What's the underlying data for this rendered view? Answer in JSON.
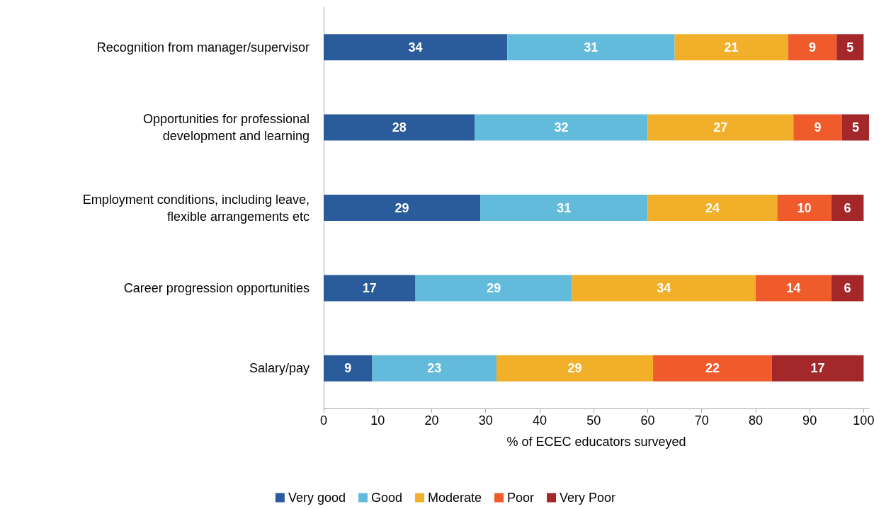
{
  "chart_data": {
    "type": "bar",
    "orientation": "horizontal",
    "stacked": true,
    "xlabel": "% of ECEC educators surveyed",
    "categories": [
      "Recognition from manager/supervisor",
      "Opportunities for professional\ndevelopment and learning",
      "Employment conditions, including leave,\nflexible arrangements etc",
      "Career progression opportunities",
      "Salary/pay"
    ],
    "series": [
      {
        "name": "Very good",
        "color": "#2a5b9b",
        "values": [
          34,
          28,
          29,
          17,
          9
        ]
      },
      {
        "name": "Good",
        "color": "#63bbdc",
        "values": [
          31,
          32,
          31,
          29,
          23
        ]
      },
      {
        "name": "Moderate",
        "color": "#f2b02a",
        "values": [
          21,
          27,
          24,
          34,
          29
        ]
      },
      {
        "name": "Poor",
        "color": "#ef5b2a",
        "values": [
          9,
          9,
          10,
          14,
          22
        ]
      },
      {
        "name": "Very Poor",
        "color": "#a4282a",
        "values": [
          5,
          5,
          6,
          6,
          17
        ]
      }
    ],
    "xlim": [
      0,
      101
    ],
    "xticks": [
      0,
      10,
      20,
      30,
      40,
      50,
      60,
      70,
      80,
      90,
      100
    ],
    "data_labels": true,
    "grid": false,
    "legend": "bottom"
  }
}
